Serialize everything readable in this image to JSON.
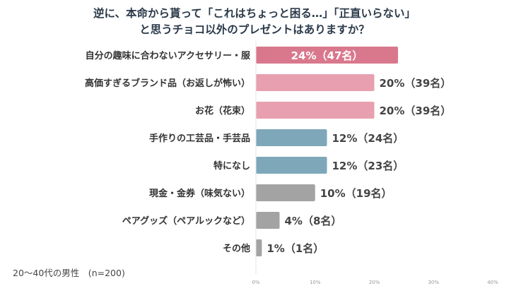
{
  "chart_data": {
    "type": "bar",
    "orientation": "horizontal",
    "title_lines": [
      "逆に、本命から貰って「これはちょっと困る…」「正直いらない」",
      "と思うチョコ以外のプレゼントはありますか？"
    ],
    "categories": [
      "自分の趣味に合わないアクセサリー・服",
      "高価すぎるブランド品（お返しが怖い）",
      "お花（花束）",
      "手作りの工芸品・手芸品",
      "特になし",
      "現金・金券（味気ない）",
      "ペアグッズ（ペアルックなど）",
      "その他"
    ],
    "values": [
      24,
      20,
      20,
      12,
      12,
      10,
      4,
      1
    ],
    "value_labels": [
      "24%（47名）",
      "20%（39名）",
      "20%（39名）",
      "12%（24名）",
      "12%（23名）",
      "10%（19名）",
      "4%（8名）",
      "1%（1名）"
    ],
    "bar_colors": [
      "#d9788d",
      "#e8a0b0",
      "#e8a0b0",
      "#7ea8ba",
      "#7ea8ba",
      "#a3a3a3",
      "#a3a3a3",
      "#a3a3a3"
    ],
    "xlim": [
      0,
      40
    ],
    "ticks": [
      0,
      10,
      20,
      30,
      40
    ],
    "tick_labels": [
      "0%",
      "10%",
      "20%",
      "30%",
      "40%"
    ],
    "grid": false,
    "label_inside_first_bar": true
  },
  "footnote": "20〜40代の男性　(n=200)"
}
